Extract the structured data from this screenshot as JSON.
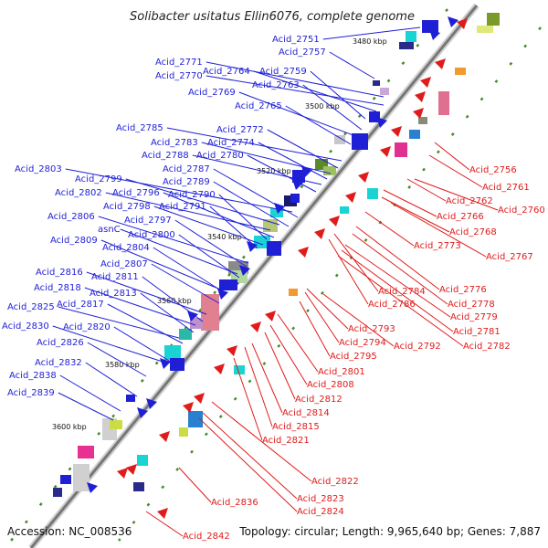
{
  "title": "Solibacter usitatus Ellin6076, complete genome",
  "footer": {
    "accession": "Accession: NC_008536",
    "topology": "Topology: circular; Length: 9,965,640 bp; Genes: 7,887"
  },
  "positions": [
    "3480 kbp",
    "3500 kbp",
    "3520 kbp",
    "3540 kbp",
    "3560 kbp",
    "3580 kbp",
    "3600 kbp"
  ],
  "colors": {
    "forward": "#1f1fd6",
    "reverse": "#e01b1b",
    "backbone": "#888888"
  },
  "genes_forward": [
    "Acid_2751",
    "Acid_2757",
    "Acid_2771",
    "Acid_2770",
    "Acid_2764",
    "Acid_2759",
    "Acid_2763",
    "Acid_2769",
    "Acid_2765",
    "Acid_2785",
    "Acid_2772",
    "Acid_2783",
    "Acid_2774",
    "Acid_2788",
    "Acid_2780",
    "Acid_2803",
    "Acid_2787",
    "Acid_2799",
    "Acid_2789",
    "Acid_2802",
    "Acid_2796",
    "Acid_2790",
    "Acid_2798",
    "Acid_2791",
    "Acid_2806",
    "Acid_2797",
    "asnC",
    "Acid_2800",
    "Acid_2809",
    "Acid_2804",
    "Acid_2807",
    "Acid_2816",
    "Acid_2811",
    "Acid_2818",
    "Acid_2813",
    "Acid_2825",
    "Acid_2817",
    "Acid_2830",
    "Acid_2820",
    "Acid_2826",
    "Acid_2832",
    "Acid_2838",
    "Acid_2839"
  ],
  "genes_reverse": [
    "Acid_2756",
    "Acid_2761",
    "Acid_2762",
    "Acid_2760",
    "Acid_2766",
    "Acid_2768",
    "Acid_2773",
    "Acid_2767",
    "Acid_2776",
    "Acid_2784",
    "Acid_2778",
    "Acid_2786",
    "Acid_2779",
    "Acid_2781",
    "Acid_2782",
    "Acid_2793",
    "Acid_2794",
    "Acid_2792",
    "Acid_2795",
    "Acid_2801",
    "Acid_2808",
    "Acid_2812",
    "Acid_2814",
    "Acid_2815",
    "Acid_2821",
    "Acid_2822",
    "Acid_2823",
    "Acid_2824",
    "Acid_2836",
    "Acid_2842"
  ]
}
